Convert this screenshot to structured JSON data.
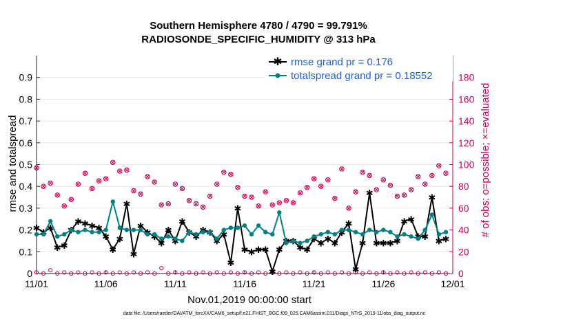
{
  "chart_data": {
    "type": "line",
    "title": "Southern Hemisphere 4780 / 4790 = 99.791%",
    "subtitle": "RADIOSONDE_SPECIFIC_HUMIDITY @ 313 hPa",
    "xlabel": "Nov.01,2019 00:00:00 start",
    "ylabel": "rmse and totalspread",
    "ylabel_right": "# of obs: o=possible; ×=evaluated",
    "footer": "data file: /Users/raeder/DAI/ATM_forcXX/CAM6_setup/f.e21.FHIST_BGC.f09_025.CAM6assim.011/Diags_NTrS_2019-11/obs_diag_output.nc",
    "xlim": [
      0,
      30
    ],
    "ylim": [
      0,
      1
    ],
    "ylim_right": [
      0,
      200
    ],
    "xticks": [
      0,
      5,
      10,
      15,
      20,
      25,
      30
    ],
    "xticklabels": [
      "11/01",
      "11/06",
      "11/11",
      "11/16",
      "11/21",
      "11/26",
      "12/01"
    ],
    "yticks": [
      0,
      0.1,
      0.2,
      0.3,
      0.4,
      0.5,
      0.6,
      0.7,
      0.8,
      0.9
    ],
    "yticklabels": [
      "0",
      "0.1",
      "0.2",
      "0.3",
      "0.4",
      "0.5",
      "0.6",
      "0.7",
      "0.8",
      "0.9"
    ],
    "yticks_right": [
      0,
      20,
      40,
      60,
      80,
      100,
      120,
      140,
      160,
      180
    ],
    "yticklabels_right": [
      "0",
      "20",
      "40",
      "60",
      "80",
      "100",
      "120",
      "140",
      "160",
      "180"
    ],
    "legend_location": "top-right",
    "x": [
      0,
      0.5,
      1,
      1.5,
      2,
      2.5,
      3,
      3.5,
      4,
      4.5,
      5,
      5.5,
      6,
      6.5,
      7,
      7.5,
      8,
      8.5,
      9,
      9.5,
      10,
      10.5,
      11,
      11.5,
      12,
      12.5,
      13,
      13.5,
      14,
      14.5,
      15,
      15.5,
      16,
      16.5,
      17,
      17.5,
      18,
      18.5,
      19,
      19.5,
      20,
      20.5,
      21,
      21.5,
      22,
      22.5,
      23,
      23.5,
      24,
      24.5,
      25,
      25.5,
      26,
      26.5,
      27,
      27.5,
      28,
      28.5,
      29,
      29.5
    ],
    "series": [
      {
        "name": "rmse grand pr = 0.176",
        "color": "#000000",
        "marker": "star",
        "values": [
          0.21,
          0.19,
          0.21,
          0.12,
          0.13,
          0.2,
          0.24,
          0.23,
          0.22,
          0.21,
          0.17,
          0.11,
          0.16,
          0.32,
          0.09,
          0.22,
          0.19,
          0.17,
          0.14,
          0.2,
          0.15,
          0.24,
          0.19,
          0.17,
          0.2,
          0.19,
          0.15,
          0.18,
          0.05,
          0.3,
          0.11,
          0.1,
          0.11,
          0.11,
          0.01,
          0.11,
          0.15,
          0.15,
          0.12,
          0.11,
          0.16,
          0.14,
          0.16,
          0.14,
          0.19,
          0.23,
          0.02,
          0.14,
          0.37,
          0.14,
          0.14,
          0.14,
          0.15,
          0.24,
          0.25,
          0.17,
          0.17,
          0.35,
          0.15,
          0.16
        ]
      },
      {
        "name": "totalspread grand pr = 0.18552",
        "color": "#008080",
        "marker": "circle",
        "values": [
          0.18,
          0.18,
          0.24,
          0.17,
          0.18,
          0.2,
          0.19,
          0.2,
          0.19,
          0.19,
          0.2,
          0.33,
          0.21,
          0.2,
          0.2,
          0.2,
          0.18,
          0.18,
          0.16,
          0.17,
          0.16,
          0.15,
          0.19,
          0.18,
          0.19,
          0.19,
          0.16,
          0.2,
          0.21,
          0.21,
          0.22,
          0.18,
          0.22,
          0.19,
          0.18,
          0.28,
          0.14,
          0.15,
          0.14,
          0.15,
          0.17,
          0.18,
          0.19,
          0.18,
          0.2,
          0.2,
          0.19,
          0.18,
          0.2,
          0.19,
          0.2,
          0.19,
          0.17,
          0.18,
          0.17,
          0.16,
          0.2,
          0.27,
          0.18,
          0.19
        ]
      },
      {
        "name": "obs possible",
        "color": "#cc0055",
        "marker": "circle-open",
        "axis": "right",
        "values": [
          97,
          80,
          83,
          72,
          62,
          68,
          82,
          92,
          78,
          85,
          87,
          102,
          94,
          95,
          76,
          73,
          89,
          84,
          63,
          64,
          82,
          78,
          67,
          64,
          61,
          71,
          82,
          93,
          91,
          79,
          71,
          70,
          62,
          75,
          63,
          65,
          67,
          65,
          74,
          79,
          87,
          80,
          86,
          69,
          96,
          60,
          75,
          93,
          90,
          77,
          86,
          81,
          71,
          72,
          77,
          89,
          82,
          90,
          99,
          92
        ]
      },
      {
        "name": "obs evaluated",
        "color": "#cc0055",
        "marker": "x",
        "axis": "right",
        "values": [
          97,
          80,
          83,
          72,
          62,
          68,
          82,
          92,
          78,
          85,
          87,
          102,
          94,
          95,
          76,
          73,
          89,
          84,
          63,
          64,
          82,
          78,
          67,
          64,
          61,
          71,
          82,
          93,
          91,
          79,
          71,
          70,
          62,
          75,
          63,
          65,
          67,
          65,
          74,
          79,
          87,
          80,
          86,
          69,
          96,
          60,
          75,
          93,
          90,
          77,
          86,
          81,
          71,
          72,
          77,
          89,
          82,
          90,
          99,
          92
        ]
      }
    ],
    "rejected_obs_right": [
      1,
      0,
      3,
      0,
      1,
      0,
      1,
      0,
      1,
      0,
      1,
      0,
      1,
      0,
      1,
      0,
      1,
      0,
      5,
      0,
      1,
      0,
      1,
      0,
      1,
      0,
      1,
      0,
      1,
      0,
      1,
      0,
      1,
      0,
      1,
      0,
      1,
      0,
      1,
      0,
      1,
      0,
      1,
      0,
      1,
      0,
      1,
      0,
      1,
      0,
      1,
      0,
      1,
      0,
      1,
      0,
      1,
      0,
      1,
      0
    ]
  }
}
